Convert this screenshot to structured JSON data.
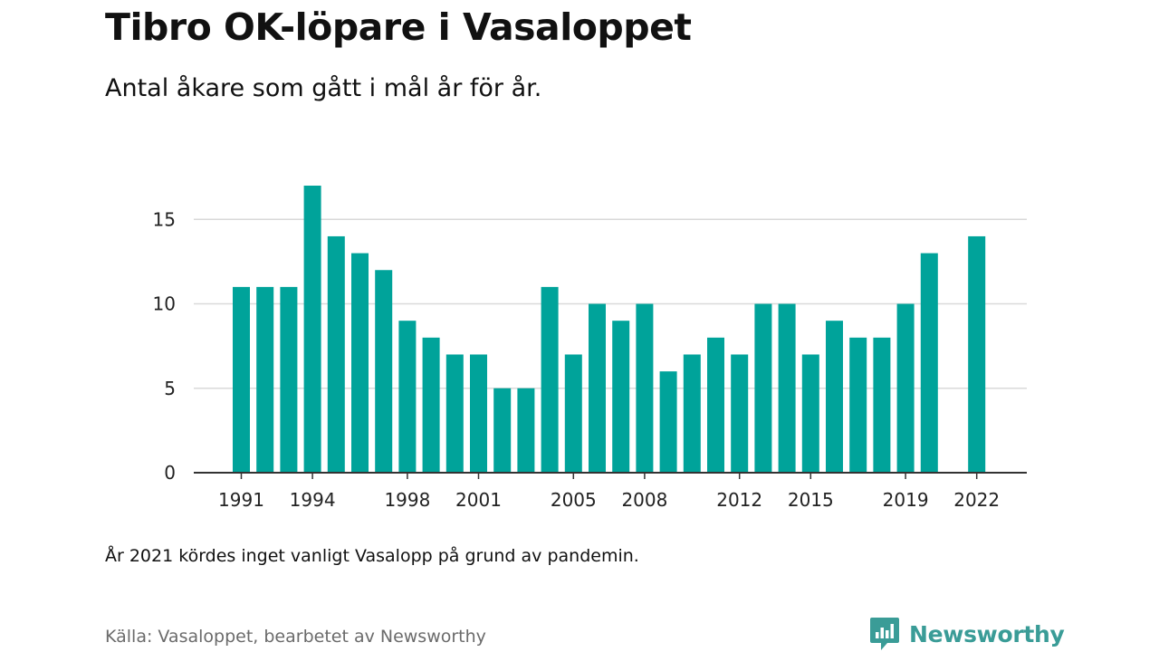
{
  "header": {
    "title": "Tibro OK-löpare i Vasaloppet",
    "subtitle": "Antal åkare som gått i mål år för år."
  },
  "footer": {
    "note": "År 2021 kördes inget vanligt Vasalopp på grund av pandemin.",
    "source": "Källa: Vasaloppet, bearbetet av Newsworthy",
    "brand": "Newsworthy",
    "brand_icon": "newsworthy-logo-icon"
  },
  "colors": {
    "bar": "#00a39a",
    "grid": "#d9d9d9",
    "axis": "#333333",
    "brand": "#3a9c97"
  },
  "chart_data": {
    "type": "bar",
    "title": "Tibro OK-löpare i Vasaloppet",
    "subtitle": "Antal åkare som gått i mål år för år.",
    "xlabel": "",
    "ylabel": "",
    "categories": [
      1991,
      1992,
      1993,
      1994,
      1995,
      1996,
      1997,
      1998,
      1999,
      2000,
      2001,
      2002,
      2003,
      2004,
      2005,
      2006,
      2007,
      2008,
      2009,
      2010,
      2011,
      2012,
      2013,
      2014,
      2015,
      2016,
      2017,
      2018,
      2019,
      2020,
      2021,
      2022
    ],
    "values": [
      11,
      11,
      11,
      17,
      14,
      13,
      12,
      9,
      8,
      7,
      7,
      5,
      5,
      11,
      7,
      10,
      9,
      10,
      6,
      7,
      8,
      7,
      10,
      10,
      7,
      9,
      8,
      8,
      10,
      13,
      null,
      14
    ],
    "x_tick_labels": [
      "1991",
      "1994",
      "1998",
      "2001",
      "2005",
      "2008",
      "2012",
      "2015",
      "2019",
      "2022"
    ],
    "y_ticks": [
      0,
      5,
      10,
      15
    ],
    "ylim": [
      0,
      17
    ],
    "grid": true,
    "legend": "none"
  }
}
